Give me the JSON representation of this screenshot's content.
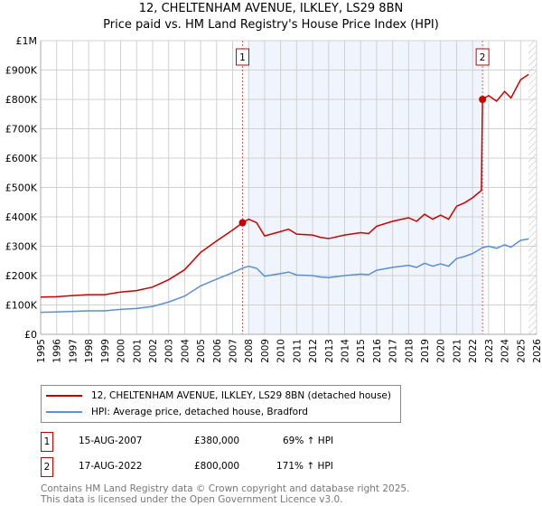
{
  "chart_data": {
    "type": "line",
    "title": "12, CHELTENHAM AVENUE, ILKLEY, LS29 8BN",
    "subtitle": "Price paid vs. HM Land Registry's House Price Index (HPI)",
    "xlabel": "",
    "ylabel": "",
    "xlim": [
      1995,
      2026
    ],
    "ylim": [
      0,
      1000000
    ],
    "grid": true,
    "y_ticks": [
      {
        "v": 0,
        "label": "£0"
      },
      {
        "v": 100000,
        "label": "£100K"
      },
      {
        "v": 200000,
        "label": "£200K"
      },
      {
        "v": 300000,
        "label": "£300K"
      },
      {
        "v": 400000,
        "label": "£400K"
      },
      {
        "v": 500000,
        "label": "£500K"
      },
      {
        "v": 600000,
        "label": "£600K"
      },
      {
        "v": 700000,
        "label": "£700K"
      },
      {
        "v": 800000,
        "label": "£800K"
      },
      {
        "v": 900000,
        "label": "£900K"
      },
      {
        "v": 1000000,
        "label": "£1M"
      }
    ],
    "x_ticks": [
      "1995",
      "1996",
      "1997",
      "1998",
      "1999",
      "2000",
      "2001",
      "2002",
      "2003",
      "2004",
      "2005",
      "2006",
      "2007",
      "2008",
      "2009",
      "2010",
      "2011",
      "2012",
      "2013",
      "2014",
      "2015",
      "2016",
      "2017",
      "2018",
      "2019",
      "2020",
      "2021",
      "2022",
      "2023",
      "2024",
      "2025",
      "2026"
    ],
    "shaded_range": [
      2008,
      2022.62
    ],
    "hatched_range": [
      2025.5,
      2026
    ],
    "series": [
      {
        "name": "12, CHELTENHAM AVENUE, ILKLEY, LS29 8BN (detached house)",
        "color": "#cc0000",
        "x": [
          1995,
          1996,
          1997,
          1998,
          1999,
          2000,
          2001,
          2002,
          2003,
          2004,
          2005,
          2006,
          2007,
          2007.62,
          2008,
          2008.5,
          2009,
          2010,
          2010.5,
          2011,
          2012,
          2012.5,
          2013,
          2014,
          2015,
          2015.5,
          2016,
          2017,
          2018,
          2018.5,
          2019,
          2019.5,
          2020,
          2020.5,
          2021,
          2021.5,
          2022,
          2022.55,
          2022.62,
          2023,
          2023.5,
          2024,
          2024.4,
          2025,
          2025.5
        ],
        "y": [
          127000,
          128000,
          132000,
          135000,
          135000,
          144000,
          149000,
          161000,
          186000,
          220000,
          279000,
          318000,
          355000,
          380000,
          392000,
          380000,
          335000,
          350000,
          358000,
          341000,
          338000,
          330000,
          326000,
          338000,
          346000,
          343000,
          368000,
          385000,
          397000,
          385000,
          409000,
          392000,
          406000,
          392000,
          436000,
          448000,
          465000,
          490000,
          800000,
          813000,
          794000,
          827000,
          805000,
          867000,
          885000
        ]
      },
      {
        "name": "HPI: Average price, detached house, Bradford",
        "color": "#5b8fd4",
        "x": [
          1995,
          1996,
          1997,
          1998,
          1999,
          2000,
          2001,
          2002,
          2003,
          2004,
          2005,
          2006,
          2007,
          2007.62,
          2008,
          2008.5,
          2009,
          2010,
          2010.5,
          2011,
          2012,
          2012.5,
          2013,
          2014,
          2015,
          2015.5,
          2016,
          2017,
          2018,
          2018.5,
          2019,
          2019.5,
          2020,
          2020.5,
          2021,
          2021.5,
          2022,
          2022.62,
          2023,
          2023.5,
          2024,
          2024.4,
          2025,
          2025.5
        ],
        "y": [
          75000,
          76000,
          78000,
          80000,
          80000,
          85000,
          88000,
          95000,
          110000,
          130000,
          165000,
          188000,
          210000,
          225000,
          232000,
          225000,
          198000,
          207000,
          212000,
          202000,
          200000,
          195000,
          193000,
          200000,
          205000,
          203000,
          218000,
          228000,
          235000,
          228000,
          242000,
          232000,
          240000,
          232000,
          258000,
          265000,
          275000,
          295000,
          300000,
          293000,
          305000,
          297000,
          320000,
          325000
        ]
      }
    ],
    "sales": [
      {
        "label": "1",
        "x": 2007.62,
        "y": 380000,
        "date": "15-AUG-2007",
        "price": "£380,000",
        "hpi": "69% ↑ HPI"
      },
      {
        "label": "2",
        "x": 2022.62,
        "y": 800000,
        "date": "17-AUG-2022",
        "price": "£800,000",
        "hpi": "171% ↑ HPI"
      }
    ]
  },
  "footer": {
    "line1": "Contains HM Land Registry data © Crown copyright and database right 2025.",
    "line2": "This data is licensed under the Open Government Licence v3.0."
  }
}
